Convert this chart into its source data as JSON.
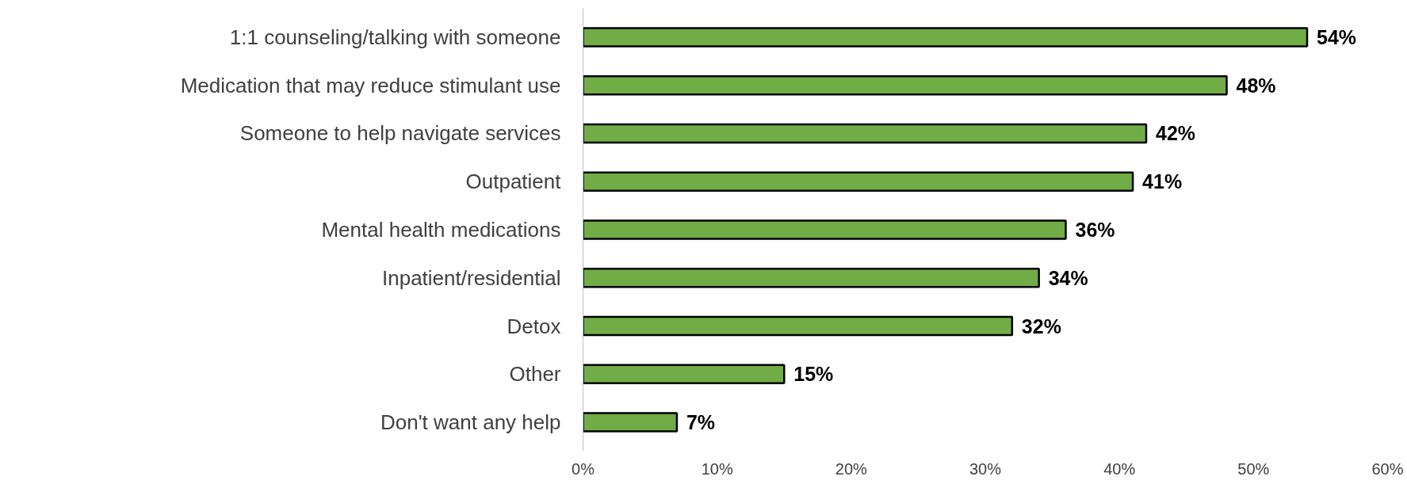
{
  "chart_data": {
    "type": "bar",
    "orientation": "horizontal",
    "categories": [
      "1:1 counseling/talking with someone",
      "Medication that may reduce stimulant use",
      "Someone to help navigate services",
      "Outpatient",
      "Mental health medications",
      "Inpatient/residential",
      "Detox",
      "Other",
      "Don't want any help"
    ],
    "values": [
      54,
      48,
      42,
      41,
      36,
      34,
      32,
      15,
      7
    ],
    "value_labels": [
      "54%",
      "48%",
      "42%",
      "41%",
      "36%",
      "34%",
      "32%",
      "15%",
      "7%"
    ],
    "color": "#70ad47",
    "xlim": [
      0,
      60
    ],
    "xticks": [
      {
        "value": 0,
        "label": "0%"
      },
      {
        "value": 10,
        "label": "10%"
      },
      {
        "value": 20,
        "label": "20%"
      },
      {
        "value": 30,
        "label": "30%"
      },
      {
        "value": 40,
        "label": "40%"
      },
      {
        "value": 50,
        "label": "50%"
      },
      {
        "value": 60,
        "label": "60%"
      }
    ],
    "grid": false
  }
}
